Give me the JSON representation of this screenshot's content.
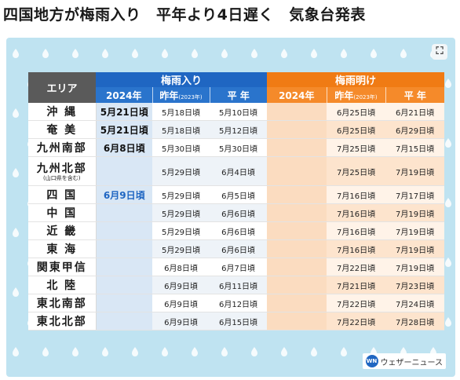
{
  "headline": "四国地方が梅雨入り　平年より4日遅く　気象台発表",
  "table": {
    "area_header": "エリア",
    "tsuyu_iri_header": "梅雨入り",
    "tsuyu_ake_header": "梅雨明け",
    "col_2024": "2024年",
    "col_last_year": "昨年",
    "col_last_year_note": "(2023年)",
    "col_average": "平 年",
    "rows": [
      {
        "region": "沖 縄",
        "note": "",
        "in_2024": "5月21日頃",
        "in_2023": "5月18日頃",
        "in_avg": "5月10日頃",
        "out_2024": "",
        "out_2023": "6月25日頃",
        "out_avg": "6月21日頃"
      },
      {
        "region": "奄 美",
        "note": "",
        "in_2024": "5月21日頃",
        "in_2023": "5月18日頃",
        "in_avg": "5月12日頃",
        "out_2024": "",
        "out_2023": "6月25日頃",
        "out_avg": "6月29日頃"
      },
      {
        "region": "九州南部",
        "note": "",
        "in_2024": "6月8日頃",
        "in_2023": "5月30日頃",
        "in_avg": "5月30日頃",
        "out_2024": "",
        "out_2023": "7月25日頃",
        "out_avg": "7月15日頃"
      },
      {
        "region": "九州北部",
        "note": "(山口県を含む)",
        "in_2024": "",
        "in_2023": "5月29日頃",
        "in_avg": "6月4日頃",
        "out_2024": "",
        "out_2023": "7月25日頃",
        "out_avg": "7月19日頃"
      },
      {
        "region": "四 国",
        "note": "",
        "in_2024": "6月9日頃",
        "in_2023": "5月29日頃",
        "in_avg": "6月5日頃",
        "out_2024": "",
        "out_2023": "7月16日頃",
        "out_avg": "7月17日頃"
      },
      {
        "region": "中 国",
        "note": "",
        "in_2024": "",
        "in_2023": "5月29日頃",
        "in_avg": "6月6日頃",
        "out_2024": "",
        "out_2023": "7月16日頃",
        "out_avg": "7月19日頃"
      },
      {
        "region": "近 畿",
        "note": "",
        "in_2024": "",
        "in_2023": "5月29日頃",
        "in_avg": "6月6日頃",
        "out_2024": "",
        "out_2023": "7月16日頃",
        "out_avg": "7月19日頃"
      },
      {
        "region": "東 海",
        "note": "",
        "in_2024": "",
        "in_2023": "5月29日頃",
        "in_avg": "6月6日頃",
        "out_2024": "",
        "out_2023": "7月16日頃",
        "out_avg": "7月19日頃"
      },
      {
        "region": "関東甲信",
        "note": "",
        "in_2024": "",
        "in_2023": "6月8日頃",
        "in_avg": "6月7日頃",
        "out_2024": "",
        "out_2023": "7月22日頃",
        "out_avg": "7月19日頃"
      },
      {
        "region": "北 陸",
        "note": "",
        "in_2024": "",
        "in_2023": "6月9日頃",
        "in_avg": "6月11日頃",
        "out_2024": "",
        "out_2023": "7月21日頃",
        "out_avg": "7月23日頃"
      },
      {
        "region": "東北南部",
        "note": "",
        "in_2024": "",
        "in_2023": "6月9日頃",
        "in_avg": "6月12日頃",
        "out_2024": "",
        "out_2023": "7月22日頃",
        "out_avg": "7月24日頃"
      },
      {
        "region": "東北北部",
        "note": "",
        "in_2024": "",
        "in_2023": "6月9日頃",
        "in_avg": "6月15日頃",
        "out_2024": "",
        "out_2023": "7月22日頃",
        "out_avg": "7月28日頃"
      }
    ]
  },
  "logo": {
    "mark": "WN",
    "text": "ウェザーニュース"
  },
  "colors": {
    "tsuyu_iri": "#1f66c2",
    "tsuyu_ake": "#f07b14",
    "background": "#bfe3f1"
  },
  "icons": {
    "expand": "expand-icon",
    "raindrop": "raindrop-icon"
  }
}
